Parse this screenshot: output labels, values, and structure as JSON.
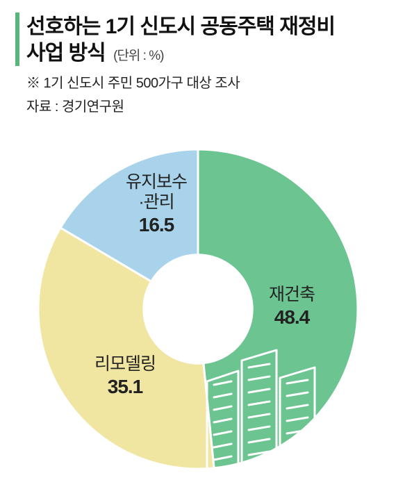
{
  "title": {
    "line1": "선호하는 1기 신도시 공동주택 재정비",
    "line2": "사업 방식",
    "unit": "(단위 : %)",
    "title_fontsize": 30,
    "unit_fontsize": 19,
    "accent_color": "#58b57c"
  },
  "footnote": "※ 1기 신도시 주민 500가구 대상 조사",
  "source": "자료 : 경기연구원",
  "chart": {
    "type": "donut",
    "inner_radius_ratio": 0.34,
    "background_color": "#ffffff",
    "center_color": "#ffffff",
    "start_angle_deg": -90,
    "slices": [
      {
        "label": "재건축",
        "value": 48.4,
        "color": "#6cc591",
        "value_color": "#222222"
      },
      {
        "label": "리모델링",
        "value": 35.1,
        "color": "#f0e5a1",
        "value_color": "#222222"
      },
      {
        "label": "유지보수\n·관리",
        "value": 16.5,
        "color": "#a8d3ea",
        "value_color": "#222222"
      }
    ],
    "label_fontsize": 25,
    "value_fontsize": 28,
    "value_fontweight": 800,
    "divider_color": "#ffffff",
    "divider_width": 3
  },
  "building_illustration": {
    "stroke": "#ffffff",
    "stroke_width": 3
  }
}
